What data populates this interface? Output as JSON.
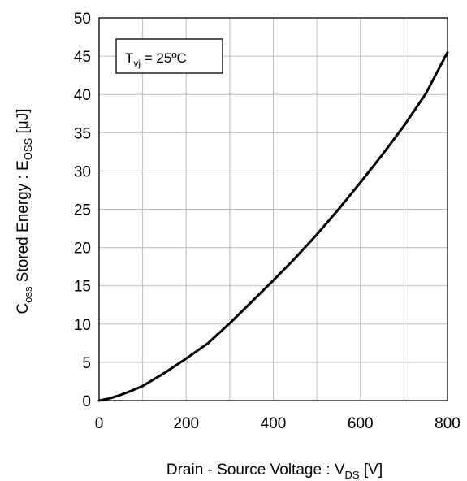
{
  "chart_data": {
    "type": "line",
    "title": "",
    "xlabel": {
      "main": "Drain - Source Voltage : V",
      "sub": "DS",
      "unit": " [V]"
    },
    "ylabel": {
      "pre": "C",
      "pre_sub": "oss",
      "main": " Stored Energy : E",
      "sub": "OSS",
      "unit": " [μJ]"
    },
    "xlim": [
      0,
      800
    ],
    "ylim": [
      0,
      50
    ],
    "xticks": [
      0,
      200,
      400,
      600,
      800
    ],
    "yticks": [
      0,
      5,
      10,
      15,
      20,
      25,
      30,
      35,
      40,
      45,
      50
    ],
    "grid": true,
    "annotation": {
      "main": "T",
      "sub": "vj",
      "rest": " = 25ºC"
    },
    "series": [
      {
        "color": "#000000",
        "x": [
          0,
          25,
          50,
          75,
          100,
          150,
          200,
          250,
          300,
          350,
          400,
          450,
          500,
          550,
          600,
          650,
          700,
          750,
          800
        ],
        "y": [
          0,
          0.3,
          0.75,
          1.3,
          1.9,
          3.6,
          5.5,
          7.5,
          10.1,
          12.9,
          15.7,
          18.6,
          21.7,
          25.0,
          28.5,
          32.1,
          35.9,
          40.1,
          45.5
        ]
      }
    ]
  }
}
